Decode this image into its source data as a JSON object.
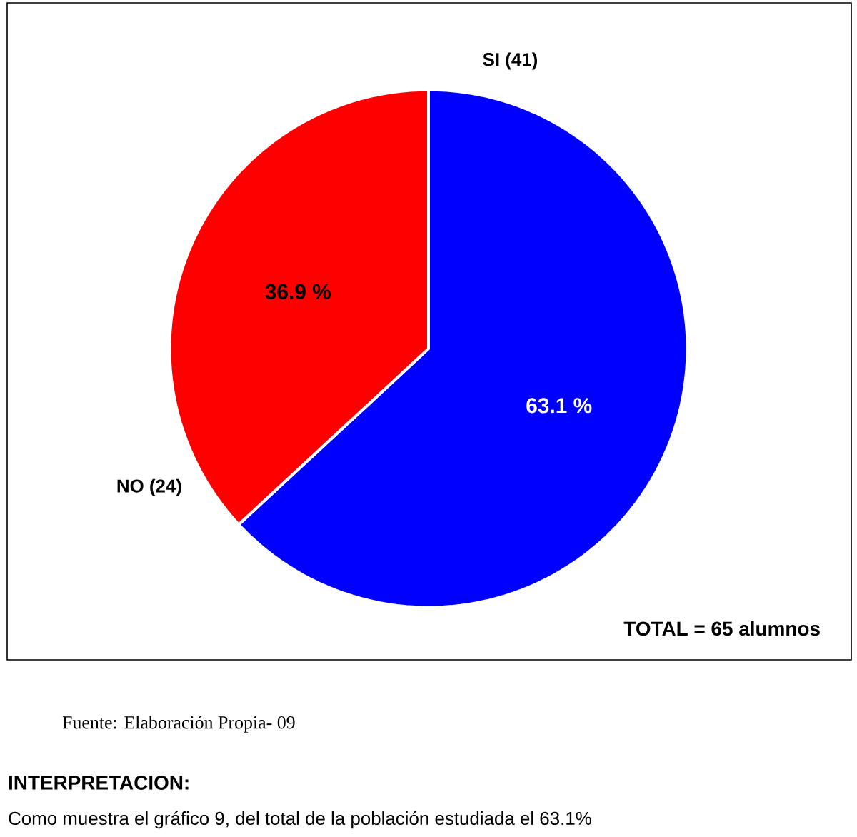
{
  "chart_data": {
    "type": "pie",
    "categories": [
      "SI (41)",
      "NO (24)"
    ],
    "values": [
      63.1,
      36.9
    ],
    "value_labels": [
      "63.1 %",
      "36.9 %"
    ],
    "colors": [
      "#0000ff",
      "#ff0000"
    ],
    "annotations": [
      "TOTAL = 65 alumnos",
      "Fuente: Elaboración Propia- 09",
      "INTERPRETACION:",
      "Como muestra el gráfico 9, del total de la población estudiada el 63.1%"
    ]
  }
}
